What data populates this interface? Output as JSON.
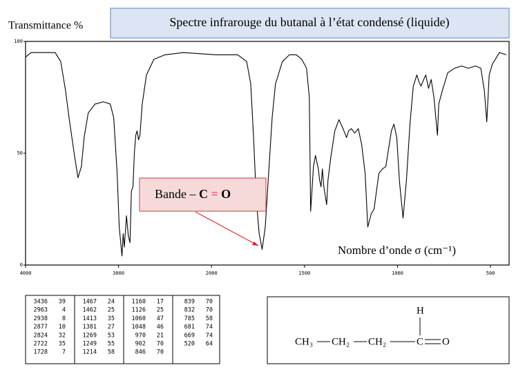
{
  "chart_data": {
    "type": "line",
    "title": "Spectre infrarouge du butanal à l’état condensé (liquide)",
    "y_label": "Transmittance %",
    "x_label": "Nombre d’onde σ (cm⁻¹)",
    "annotation": {
      "label": "Bande –",
      "bond": [
        "C",
        "=",
        "O"
      ]
    },
    "color": "#000000",
    "xscale": "piecewise",
    "xlim": [
      4000,
      400
    ],
    "xticks": [
      4000,
      3000,
      2000,
      1500,
      1000,
      500
    ],
    "ylim": [
      0,
      100
    ],
    "yticks": [
      0,
      50,
      100
    ],
    "x": [
      4000,
      3941,
      3681,
      3622,
      3570,
      3533,
      3474,
      3436,
      3400,
      3370,
      3326,
      3252,
      3163,
      3089,
      3052,
      3015,
      2993,
      2963,
      2950,
      2938,
      2915,
      2895,
      2877,
      2862,
      2845,
      2830,
      2815,
      2800,
      2785,
      2770,
      2745,
      2700,
      2620,
      2500,
      2300,
      1975,
      1859,
      1811,
      1789,
      1774,
      1759,
      1744,
      1728,
      1711,
      1693,
      1674,
      1656,
      1619,
      1581,
      1544,
      1515,
      1489,
      1474,
      1467,
      1452,
      1441,
      1426,
      1419,
      1411,
      1404,
      1396,
      1381,
      1374,
      1359,
      1337,
      1315,
      1293,
      1274,
      1263,
      1248,
      1230,
      1211,
      1193,
      1174,
      1160,
      1141,
      1126,
      1100,
      1081,
      1063,
      1044,
      1033,
      1019,
      1004,
      989,
      970,
      952,
      933,
      915,
      896,
      885,
      874,
      859,
      848,
      833,
      819,
      804,
      785,
      778,
      759,
      730,
      693,
      656,
      619,
      581,
      552,
      533,
      520,
      507,
      489,
      452,
      415
    ],
    "values": [
      93,
      95,
      95,
      91,
      78,
      66,
      49,
      39,
      44,
      57,
      68,
      72,
      73,
      72,
      66,
      41,
      17,
      4,
      14,
      8,
      22,
      13,
      10,
      33,
      35,
      50,
      58,
      60,
      56,
      58,
      72,
      85,
      92,
      94,
      95,
      94,
      94,
      91,
      81,
      57,
      29,
      14,
      7,
      17,
      41,
      66,
      81,
      91,
      94,
      94,
      92,
      88,
      75,
      24,
      44,
      49,
      43,
      38,
      35,
      43,
      35,
      27,
      38,
      48,
      60,
      65,
      61,
      57,
      60,
      61,
      59,
      61,
      54,
      41,
      17,
      23,
      25,
      41,
      43,
      44,
      54,
      60,
      63,
      57,
      37,
      21,
      38,
      63,
      80,
      85,
      82,
      80,
      83,
      85,
      79,
      83,
      75,
      58,
      72,
      78,
      86,
      88,
      89,
      88,
      89,
      88,
      78,
      64,
      85,
      90,
      95,
      94
    ]
  },
  "table": {
    "columns": [
      [
        [
          3436,
          39
        ],
        [
          2963,
          4
        ],
        [
          2938,
          8
        ],
        [
          2877,
          10
        ],
        [
          2824,
          32
        ],
        [
          2722,
          35
        ],
        [
          1728,
          7
        ]
      ],
      [
        [
          1467,
          24
        ],
        [
          1462,
          25
        ],
        [
          1413,
          35
        ],
        [
          1381,
          27
        ],
        [
          1269,
          53
        ],
        [
          1249,
          55
        ],
        [
          1214,
          58
        ]
      ],
      [
        [
          1160,
          17
        ],
        [
          1126,
          25
        ],
        [
          1060,
          47
        ],
        [
          1048,
          46
        ],
        [
          970,
          21
        ],
        [
          902,
          70
        ],
        [
          846,
          70
        ]
      ],
      [
        [
          839,
          70
        ],
        [
          832,
          70
        ],
        [
          785,
          58
        ],
        [
          681,
          74
        ],
        [
          669,
          74
        ],
        [
          520,
          64
        ]
      ]
    ]
  },
  "molecule": {
    "nodes": [
      {
        "label": "CH₃"
      },
      {
        "label": "CH₂"
      },
      {
        "label": "CH₂"
      },
      {
        "label": "C"
      },
      {
        "label": "O"
      },
      {
        "label": "H"
      }
    ]
  }
}
